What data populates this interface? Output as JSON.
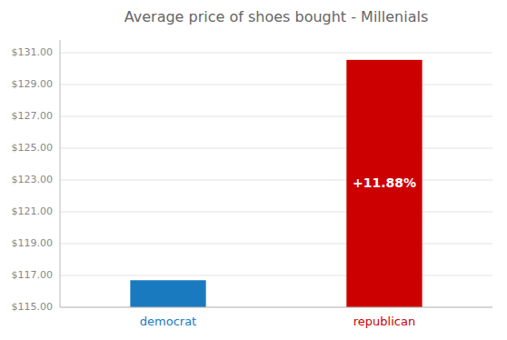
{
  "chart_data": {
    "type": "bar",
    "title": "Average price of shoes bought - Millenials",
    "categories": [
      "democrat",
      "republican"
    ],
    "values": [
      116.7,
      130.55
    ],
    "colors": [
      "#1a7abf",
      "#cc0000"
    ],
    "annotation": "+11.88%",
    "ylim": [
      115.0,
      131.8
    ],
    "yticks": [
      {
        "value": 115,
        "label": "$115.00"
      },
      {
        "value": 117,
        "label": "$117.00"
      },
      {
        "value": 119,
        "label": "$119.00"
      },
      {
        "value": 121,
        "label": "$121.00"
      },
      {
        "value": 123,
        "label": "$123.00"
      },
      {
        "value": 125,
        "label": "$125.00"
      },
      {
        "value": 127,
        "label": "$127.00"
      },
      {
        "value": 129,
        "label": "$129.00"
      },
      {
        "value": 131,
        "label": "$131.00"
      }
    ],
    "grid": true
  }
}
